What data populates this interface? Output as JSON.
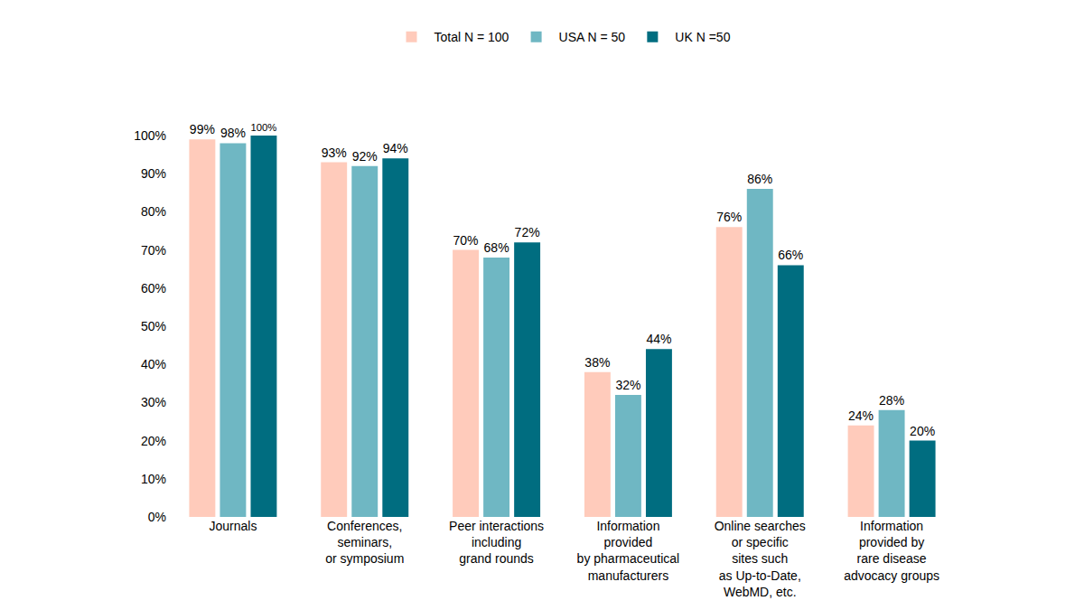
{
  "chart_data": {
    "type": "bar",
    "categories": [
      "Journals",
      "Conferences,\nseminars,\nor symposium",
      "Peer interactions\nincluding\ngrand rounds",
      "Information\nprovided\nby pharmaceutical\nmanufacturers",
      "Online searches\nor specific\nsites such\nas Up-to-Date,\nWebMD, etc.",
      "Information\nprovided by\nrare disease\nadvocacy groups"
    ],
    "series": [
      {
        "name": "Total N = 100",
        "color": "#ffcbbb",
        "values": [
          99,
          93,
          70,
          38,
          76,
          24
        ],
        "value_labels": [
          "99%",
          "93%",
          "70%",
          "38%",
          "76%",
          "24%"
        ]
      },
      {
        "name": "USA N = 50",
        "color": "#6fb7c3",
        "values": [
          98,
          92,
          68,
          32,
          86,
          28
        ],
        "value_labels": [
          "98%",
          "92%",
          "68%",
          "32%",
          "86%",
          "28%"
        ]
      },
      {
        "name": "UK N =50",
        "color": "#006d80",
        "values": [
          100,
          94,
          72,
          44,
          66,
          20
        ],
        "value_labels": [
          "100%",
          "94%",
          "72%",
          "44%",
          "66%",
          "20%"
        ]
      }
    ],
    "ylim": [
      0,
      100
    ],
    "yticks": [
      {
        "value": 0,
        "label": "0%"
      },
      {
        "value": 10,
        "label": "10%"
      },
      {
        "value": 20,
        "label": "20%"
      },
      {
        "value": 30,
        "label": "30%"
      },
      {
        "value": 40,
        "label": "40%"
      },
      {
        "value": 50,
        "label": "50%"
      },
      {
        "value": 60,
        "label": "60%"
      },
      {
        "value": 70,
        "label": "70%"
      },
      {
        "value": 80,
        "label": "80%"
      },
      {
        "value": 90,
        "label": "90%"
      },
      {
        "value": 100,
        "label": "100%"
      }
    ],
    "grid": false,
    "legend": "top",
    "data_labels": true
  }
}
